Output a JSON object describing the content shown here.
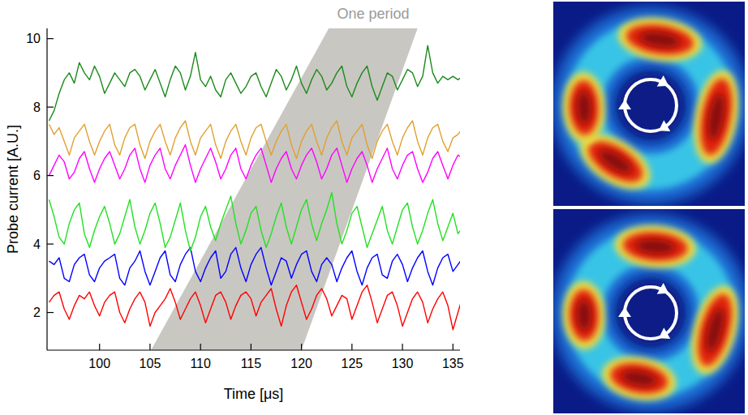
{
  "chart_data": {
    "type": "line",
    "x_label": "Time [μs]",
    "y_label": "Probe current [A.U.]",
    "xlim": [
      94.8,
      135.7
    ],
    "ylim": [
      0.9,
      10.3
    ],
    "xticks": [
      100,
      105,
      110,
      115,
      120,
      125,
      130,
      135
    ],
    "yticks": [
      2,
      4,
      6,
      8,
      10
    ],
    "grid": false,
    "x": [
      95,
      95.5,
      96,
      96.5,
      97,
      97.5,
      98,
      98.5,
      99,
      99.5,
      100,
      100.5,
      101,
      101.5,
      102,
      102.5,
      103,
      103.5,
      104,
      104.5,
      105,
      105.5,
      106,
      106.5,
      107,
      107.5,
      108,
      108.5,
      109,
      109.5,
      110,
      110.5,
      111,
      111.5,
      112,
      112.5,
      113,
      113.5,
      114,
      114.5,
      115,
      115.5,
      116,
      116.5,
      117,
      117.5,
      118,
      118.5,
      119,
      119.5,
      120,
      120.5,
      121,
      121.5,
      122,
      122.5,
      123,
      123.5,
      124,
      124.5,
      125,
      125.5,
      126,
      126.5,
      127,
      127.5,
      128,
      128.5,
      129,
      129.5,
      130,
      130.5,
      131,
      131.5,
      132,
      132.5,
      133,
      133.5,
      134,
      134.5,
      135,
      135.5,
      136
    ],
    "series": [
      {
        "color": "#ff0000",
        "values": [
          2.3,
          2.5,
          2.6,
          2.1,
          1.8,
          2.2,
          2.5,
          2.4,
          2.6,
          2.2,
          1.9,
          2.3,
          2.5,
          2.6,
          2.0,
          1.7,
          2.1,
          2.4,
          2.6,
          2.3,
          1.6,
          2.0,
          2.2,
          2.4,
          2.7,
          2.3,
          1.8,
          2.1,
          2.4,
          2.6,
          2.2,
          1.7,
          2.1,
          2.5,
          2.6,
          2.3,
          1.8,
          2.2,
          2.5,
          2.6,
          2.4,
          1.9,
          2.3,
          2.5,
          2.7,
          2.1,
          1.6,
          2.2,
          2.6,
          2.8,
          2.3,
          1.8,
          2.1,
          2.5,
          2.7,
          2.4,
          1.9,
          2.2,
          2.5,
          2.4,
          1.8,
          2.2,
          2.6,
          2.8,
          2.3,
          1.7,
          2.1,
          2.5,
          2.6,
          2.2,
          1.6,
          2.0,
          2.4,
          2.6,
          2.3,
          1.7,
          2.1,
          2.4,
          2.6,
          2.2,
          1.5,
          2.0,
          2.5
        ]
      },
      {
        "color": "#0000ff",
        "values": [
          3.5,
          3.4,
          3.6,
          3.0,
          2.9,
          3.4,
          3.6,
          3.7,
          3.1,
          2.9,
          3.3,
          3.5,
          3.6,
          3.7,
          3.0,
          2.8,
          3.3,
          3.5,
          3.8,
          3.2,
          2.8,
          3.2,
          3.6,
          3.8,
          3.1,
          2.9,
          3.4,
          3.7,
          3.9,
          3.2,
          2.9,
          3.3,
          3.6,
          3.8,
          3.0,
          3.2,
          3.7,
          3.9,
          3.3,
          2.9,
          3.4,
          3.7,
          3.9,
          3.3,
          2.8,
          3.2,
          3.6,
          3.5,
          3.0,
          3.4,
          3.7,
          3.8,
          3.2,
          2.9,
          3.4,
          3.6,
          3.4,
          2.9,
          3.3,
          3.6,
          3.8,
          3.2,
          2.8,
          3.3,
          3.6,
          3.7,
          3.1,
          3.0,
          3.5,
          3.7,
          3.4,
          2.9,
          3.3,
          3.6,
          3.8,
          3.2,
          2.8,
          3.3,
          3.6,
          3.7,
          3.2,
          3.4,
          3.6
        ]
      },
      {
        "color": "#22e022",
        "values": [
          5.3,
          4.8,
          4.2,
          4.0,
          4.6,
          5.0,
          5.2,
          4.3,
          3.9,
          4.4,
          4.8,
          5.1,
          4.6,
          4.0,
          4.3,
          4.8,
          5.3,
          4.5,
          4.0,
          4.4,
          4.9,
          5.2,
          4.6,
          3.9,
          4.2,
          4.7,
          5.2,
          4.4,
          3.8,
          4.2,
          4.8,
          5.1,
          4.5,
          4.1,
          4.6,
          5.0,
          5.4,
          4.6,
          4.0,
          4.4,
          4.9,
          5.1,
          4.4,
          3.9,
          4.3,
          4.8,
          5.2,
          4.5,
          4.0,
          4.5,
          5.0,
          5.3,
          4.6,
          4.1,
          4.6,
          5.0,
          5.5,
          4.6,
          4.0,
          4.4,
          4.9,
          5.1,
          4.5,
          3.9,
          4.3,
          4.7,
          5.1,
          4.4,
          4.0,
          4.5,
          5.0,
          5.2,
          4.5,
          4.0,
          4.4,
          4.9,
          5.3,
          4.6,
          4.1,
          4.5,
          4.9,
          4.3,
          4.5
        ]
      },
      {
        "color": "#ff00ff",
        "values": [
          6.0,
          6.3,
          6.6,
          6.4,
          5.9,
          6.1,
          6.5,
          6.7,
          6.2,
          5.8,
          6.2,
          6.5,
          6.7,
          6.3,
          5.9,
          6.2,
          6.6,
          6.8,
          6.2,
          5.8,
          6.3,
          6.6,
          6.8,
          6.2,
          5.9,
          6.3,
          6.6,
          6.9,
          6.3,
          5.8,
          6.2,
          6.5,
          6.8,
          6.4,
          5.9,
          6.2,
          6.6,
          6.8,
          6.2,
          5.9,
          6.3,
          6.6,
          6.8,
          6.3,
          5.8,
          6.2,
          6.5,
          6.7,
          6.2,
          5.9,
          6.3,
          6.6,
          6.8,
          6.4,
          5.9,
          6.2,
          6.6,
          6.8,
          6.3,
          5.8,
          6.2,
          6.5,
          6.7,
          6.3,
          5.8,
          6.2,
          6.5,
          6.8,
          6.2,
          5.9,
          6.3,
          6.6,
          6.7,
          6.2,
          5.8,
          6.1,
          6.5,
          6.7,
          6.3,
          5.9,
          6.3,
          6.6,
          6.5
        ]
      },
      {
        "color": "#e0a030",
        "values": [
          7.5,
          7.2,
          7.4,
          7.0,
          6.6,
          7.1,
          7.3,
          7.5,
          7.0,
          6.6,
          7.0,
          7.3,
          7.5,
          6.9,
          6.6,
          7.1,
          7.4,
          7.5,
          6.9,
          6.5,
          7.0,
          7.3,
          7.5,
          7.0,
          6.6,
          7.1,
          7.4,
          7.6,
          7.0,
          6.6,
          7.1,
          7.3,
          7.5,
          6.9,
          6.5,
          7.0,
          7.3,
          7.5,
          7.0,
          6.6,
          7.1,
          7.4,
          7.5,
          7.0,
          6.6,
          7.0,
          7.3,
          7.5,
          6.9,
          6.5,
          7.0,
          7.3,
          7.5,
          7.0,
          6.6,
          7.1,
          7.4,
          7.6,
          7.0,
          6.6,
          7.1,
          7.3,
          7.5,
          6.9,
          6.5,
          7.0,
          7.3,
          7.5,
          7.0,
          6.6,
          7.1,
          7.4,
          7.6,
          7.0,
          6.6,
          7.1,
          7.4,
          7.5,
          7.0,
          6.7,
          7.1,
          7.2,
          7.4
        ]
      },
      {
        "color": "#1a8a1a",
        "values": [
          7.6,
          7.9,
          8.4,
          8.8,
          9.0,
          8.7,
          9.3,
          9.0,
          8.8,
          9.2,
          8.9,
          8.4,
          8.7,
          9.0,
          8.8,
          8.6,
          9.0,
          9.1,
          8.9,
          8.5,
          8.8,
          9.1,
          8.7,
          8.3,
          8.8,
          9.2,
          9.0,
          8.5,
          8.9,
          9.6,
          8.8,
          8.6,
          8.9,
          8.5,
          8.3,
          8.8,
          9.0,
          8.7,
          8.4,
          8.6,
          8.9,
          9.0,
          8.6,
          8.3,
          8.7,
          9.1,
          8.9,
          8.5,
          8.8,
          9.2,
          8.7,
          8.4,
          8.8,
          9.1,
          8.9,
          8.5,
          8.7,
          9.0,
          9.2,
          8.6,
          8.3,
          8.7,
          9.0,
          9.2,
          8.6,
          8.2,
          8.6,
          9.0,
          8.9,
          8.5,
          8.8,
          9.1,
          9.0,
          8.6,
          8.9,
          9.8,
          9.0,
          8.7,
          8.9,
          8.8,
          8.9,
          8.8,
          8.9
        ]
      }
    ],
    "shaded_region": {
      "label": "One period",
      "x_bottom": [
        105.1,
        120.0
      ],
      "x_top": [
        122.7,
        131.5
      ]
    }
  }
}
